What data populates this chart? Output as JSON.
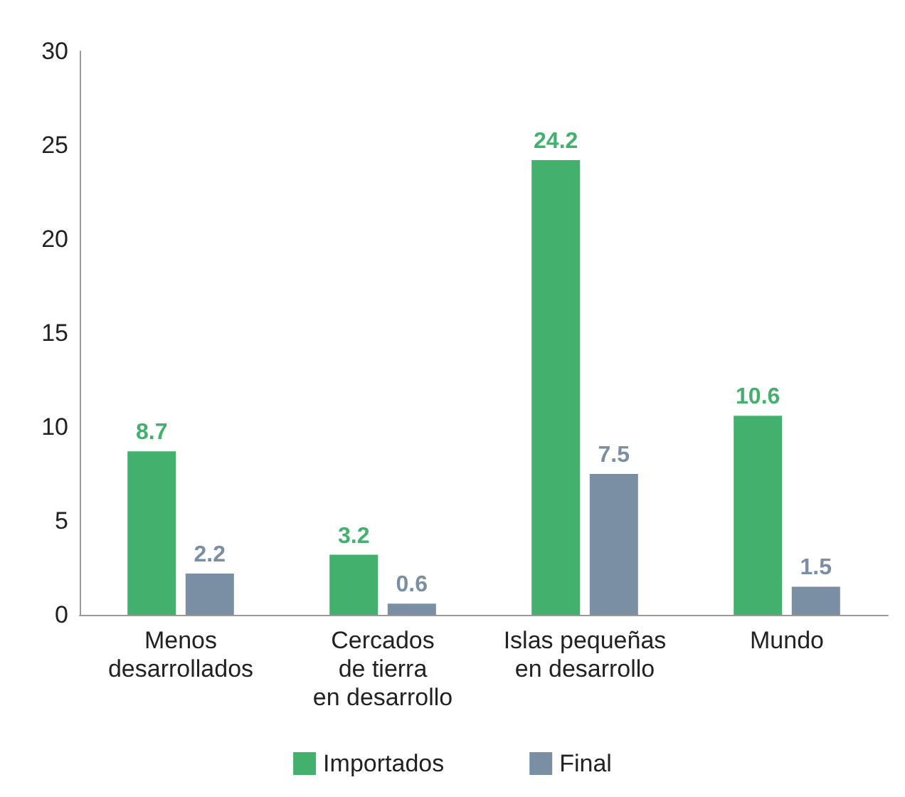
{
  "chart_data": {
    "type": "bar",
    "categories": [
      "Menos\ndesarrollados",
      "Cercados\nde tierra\nen desarrollo",
      "Islas pequeñas\nen desarrollo",
      "Mundo"
    ],
    "series": [
      {
        "name": "Importados",
        "color": "#43b06e",
        "values": [
          8.7,
          3.2,
          24.2,
          10.6
        ]
      },
      {
        "name": "Final",
        "color": "#7a8fa3",
        "values": [
          2.2,
          0.6,
          7.5,
          1.5
        ]
      }
    ],
    "ylim": [
      0,
      30
    ],
    "yticks": [
      0,
      5,
      10,
      15,
      20,
      25,
      30
    ],
    "grid": false,
    "legend": "bottom",
    "data_labels": true
  }
}
